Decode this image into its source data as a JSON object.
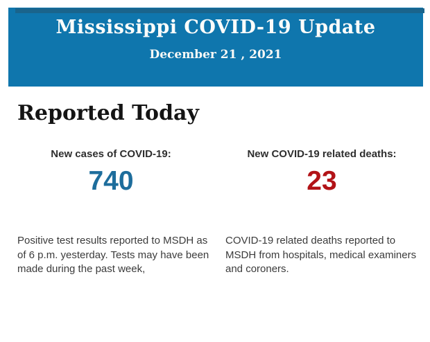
{
  "colors": {
    "header_background": "#0f76ad",
    "top_strip": "#1a648c",
    "header_text": "#fcfcfa",
    "cases_value": "#1d6d9c",
    "deaths_value": "#b21317"
  },
  "header": {
    "title": "Mississippi COVID-19 Update",
    "date": "December 21 , 2021"
  },
  "section": {
    "heading": "Reported Today"
  },
  "stats": [
    {
      "label": "New cases of COVID-19:",
      "value": "740",
      "value_color": "#1d6d9c",
      "description": "Positive test results reported to MSDH as of 6 p.m. yesterday. Tests may have been made during the past week,",
      "description_lines": [
        "Positive test results reported to MSDH as",
        "of 6 p.m. yesterday. Tests may have been",
        "made during the past week,"
      ]
    },
    {
      "label": "New COVID-19 related deaths:",
      "value": "23",
      "value_color": "#b21317",
      "description": "COVID-19 related deaths reported to MSDH from hospitals, medical examiners and coroners.",
      "description_lines": [
        "COVID-19 related deaths reported to",
        "MSDH from hospitals, medical examiners",
        "and coroners."
      ]
    }
  ]
}
